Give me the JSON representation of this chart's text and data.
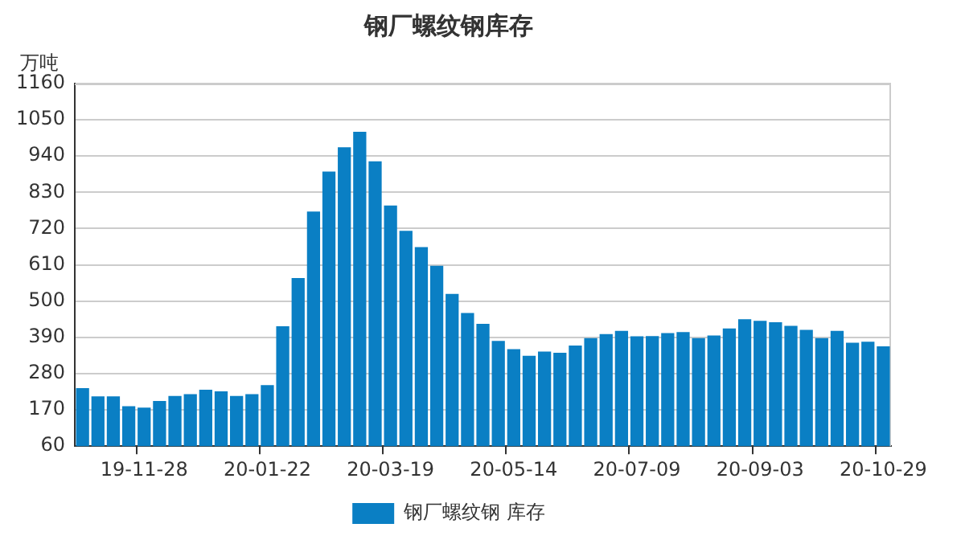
{
  "chart_data": {
    "type": "bar",
    "title": "钢厂螺纹钢库存",
    "ylabel": "万吨",
    "categories": [
      null,
      null,
      null,
      null,
      "19-11-28",
      null,
      null,
      null,
      null,
      null,
      null,
      null,
      "20-01-22",
      null,
      null,
      null,
      null,
      null,
      null,
      null,
      "20-03-19",
      null,
      null,
      null,
      null,
      null,
      null,
      null,
      "20-05-14",
      null,
      null,
      null,
      null,
      null,
      null,
      null,
      "20-07-09",
      null,
      null,
      null,
      null,
      null,
      null,
      null,
      "20-09-03",
      null,
      null,
      null,
      null,
      null,
      null,
      null,
      "20-10-29"
    ],
    "series": [
      {
        "name": "钢厂螺纹钢 库存",
        "color": "#0a7fc4",
        "values": [
          236,
          211,
          211,
          181,
          177,
          197,
          212,
          218,
          231,
          226,
          212,
          218,
          245,
          424,
          570,
          772,
          893,
          967,
          1014,
          924,
          790,
          713,
          664,
          607,
          522,
          464,
          431,
          379,
          354,
          334,
          347,
          343,
          365,
          388,
          400,
          410,
          393,
          394,
          403,
          406,
          388,
          396,
          417,
          445,
          440,
          436,
          425,
          413,
          388,
          410,
          374,
          377,
          363
        ]
      }
    ],
    "ylim": [
      60,
      1160
    ],
    "yticks": [
      60,
      170,
      280,
      390,
      500,
      610,
      720,
      830,
      940,
      1050,
      1160
    ],
    "grid": "y",
    "legend": "bottom"
  }
}
